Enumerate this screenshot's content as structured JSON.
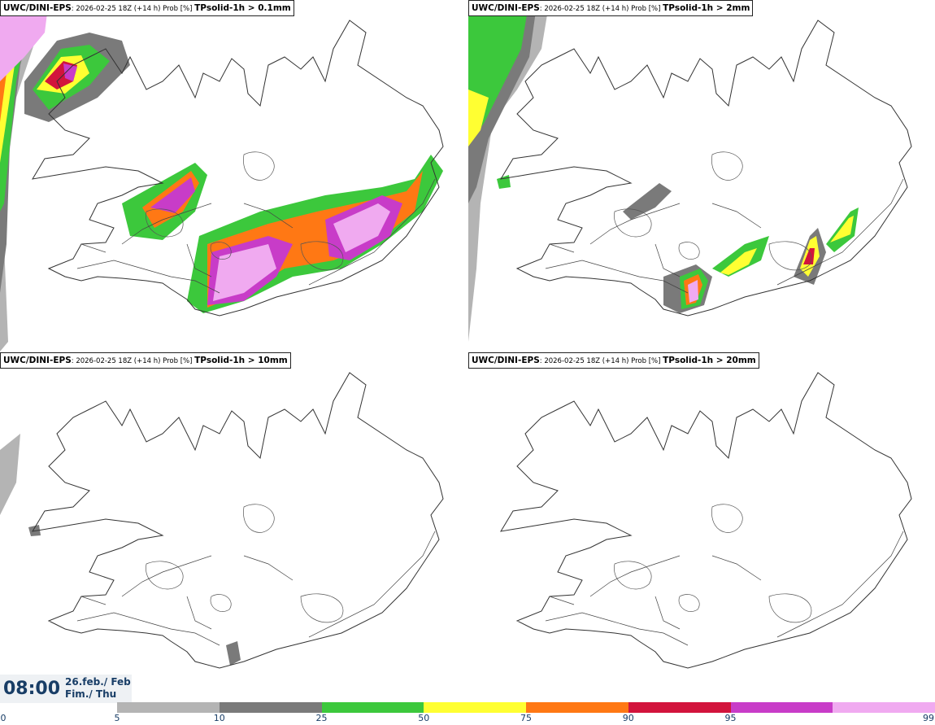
{
  "panels": [
    {
      "model": "UWC/DINI-EPS",
      "meta": ": 2026-02-25 18Z (+14 h) Prob [%] ",
      "param": "TPsolid-1h > 0.1mm"
    },
    {
      "model": "UWC/DINI-EPS",
      "meta": ": 2026-02-25 18Z (+14 h) Prob [%] ",
      "param": "TPsolid-1h > 2mm"
    },
    {
      "model": "UWC/DINI-EPS",
      "meta": ": 2026-02-25 18Z (+14 h) Prob [%] ",
      "param": "TPsolid-1h > 10mm"
    },
    {
      "model": "UWC/DINI-EPS",
      "meta": ": 2026-02-25 18Z (+14 h) Prob [%] ",
      "param": "TPsolid-1h > 20mm"
    }
  ],
  "valid_time": {
    "time": "08:00",
    "date_line1": "26.feb./ Feb",
    "date_line2": "Fim./ Thu"
  },
  "legend": {
    "ticks": [
      "0",
      "5",
      "10",
      "25",
      "50",
      "75",
      "90",
      "95",
      "99"
    ],
    "colors": [
      "#b4b4b4",
      "#7a7a7a",
      "#3cc83c",
      "#ffff32",
      "#ff7814",
      "#d2143c",
      "#c83cc8",
      "#f0aaf0"
    ]
  },
  "map_colors": {
    "p5": "#b4b4b4",
    "p10": "#7a7a7a",
    "p25": "#3cc83c",
    "p50": "#ffff32",
    "p75": "#ff7814",
    "p90": "#d2143c",
    "p95": "#c83cc8",
    "p99": "#f0aaf0",
    "coast": "#333333"
  }
}
